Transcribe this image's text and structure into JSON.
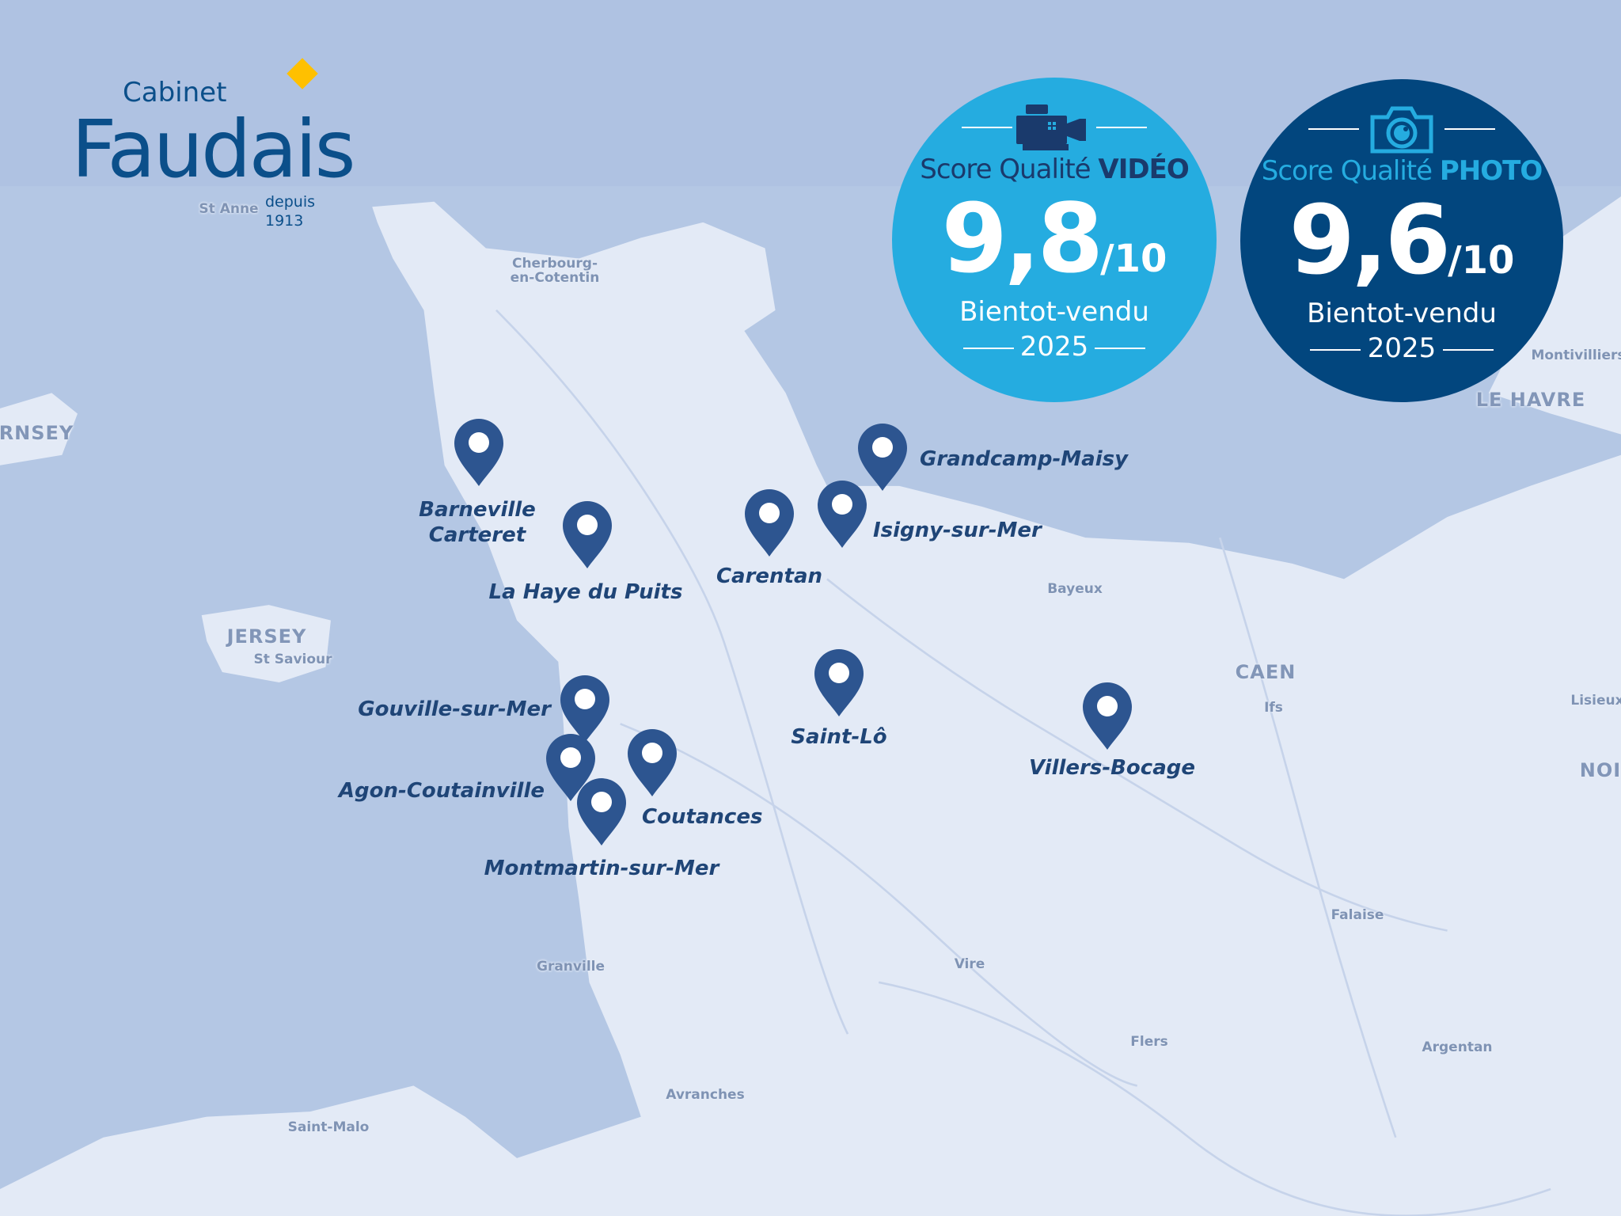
{
  "logo": {
    "line1": "Cabinet",
    "line2": "Faudais",
    "tagline": "depuis 1913",
    "accent_color": "#ffc000",
    "brand_color": "#0b4f8a"
  },
  "badges": [
    {
      "icon": "video-camera-icon",
      "title_prefix": "Score Qualité",
      "title_strong": "VIDÉO",
      "score": "9,8",
      "scale": "/10",
      "name": "Bientot-vendu",
      "year": "2025",
      "color": "#25ace0"
    },
    {
      "icon": "camera-icon",
      "title_prefix": "Score Qualité",
      "title_strong": "PHOTO",
      "score": "9,6",
      "scale": "/10",
      "name": "Bientot-vendu",
      "year": "2025",
      "color": "#02467e"
    }
  ],
  "locations": [
    {
      "name": "Barneville",
      "name2": "Carteret"
    },
    {
      "name": "La Haye du Puits"
    },
    {
      "name": "Carentan"
    },
    {
      "name": "Isigny-sur-Mer"
    },
    {
      "name": "Grandcamp-Maisy"
    },
    {
      "name": "Saint-Lô"
    },
    {
      "name": "Villers-Bocage"
    },
    {
      "name": "Gouville-sur-Mer"
    },
    {
      "name": "Agon-Coutainville"
    },
    {
      "name": "Coutances"
    },
    {
      "name": "Montmartin-sur-Mer"
    }
  ],
  "map_labels": [
    "St Anne",
    "Cherbourg-en-Cotentin",
    "RNSEY",
    "JERSEY",
    "St Saviour",
    "Bayeux",
    "CAEN",
    "Ifs",
    "Lisieux",
    "NOI",
    "Montivilliers",
    "LE HAVRE",
    "Falaise",
    "Granville",
    "Vire",
    "Flers",
    "Argentan",
    "Avranches",
    "Saint-Malo"
  ],
  "colors": {
    "sea": "#b4c7e4",
    "land": "#e3eaf6",
    "pin": "#2d5590"
  }
}
